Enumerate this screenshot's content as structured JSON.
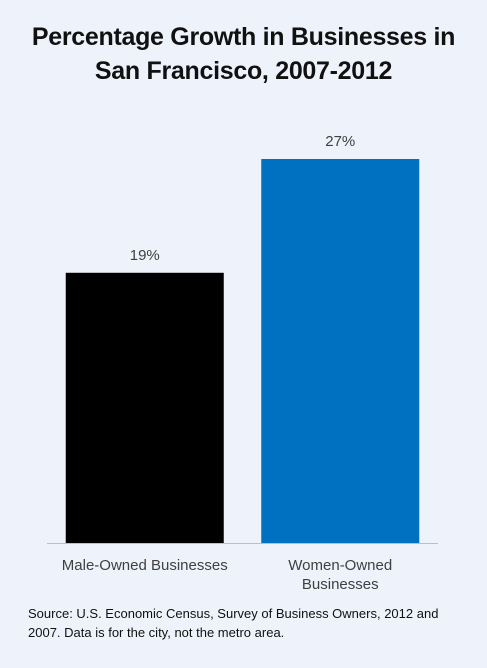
{
  "chart_data": {
    "type": "bar",
    "title": "Percentage Growth in Businesses in San Francisco, 2007-2012",
    "categories": [
      "Male-Owned Businesses",
      "Women-Owned Businesses"
    ],
    "values": [
      19,
      27
    ],
    "value_labels": [
      "19%",
      "27%"
    ],
    "colors": [
      "#000000",
      "#0070c0"
    ],
    "source": "Source: U.S. Economic Census, Survey of Business Owners, 2012 and 2007. Data is for the city, not the metro area."
  }
}
